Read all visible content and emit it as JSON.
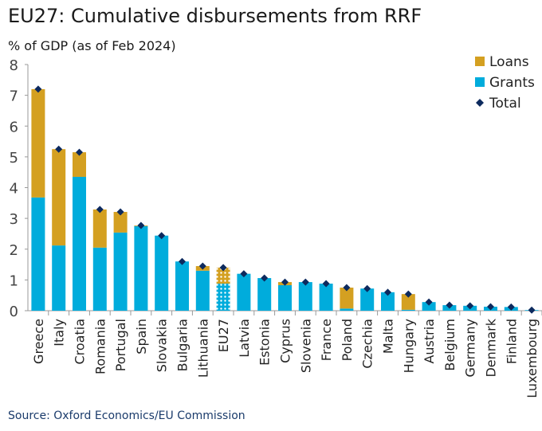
{
  "chart_data": {
    "type": "bar",
    "stacked": true,
    "title": "EU27: Cumulative disbursements from RRF",
    "ylabel": "% of GDP (as of Feb 2024)",
    "ylim": [
      0,
      8
    ],
    "yticks": [
      "0",
      "1",
      "2",
      "3",
      "4",
      "5",
      "6",
      "7",
      "8"
    ],
    "legend_position": "top-right",
    "categories": [
      "Greece",
      "Italy",
      "Croatia",
      "Romania",
      "Portugal",
      "Spain",
      "Slovakia",
      "Bulgaria",
      "Lithuania",
      "EU27",
      "Latvia",
      "Estonia",
      "Cyprus",
      "Slovenia",
      "France",
      "Poland",
      "Czechia",
      "Malta",
      "Hungary",
      "Austria",
      "Belgium",
      "Germany",
      "Denmark",
      "Finland",
      "Luxembourg"
    ],
    "series": [
      {
        "name": "Grants",
        "color": "#00acdc",
        "values": [
          3.68,
          2.12,
          4.35,
          2.05,
          2.54,
          2.75,
          2.44,
          1.6,
          1.3,
          0.88,
          1.2,
          1.06,
          0.83,
          0.93,
          0.88,
          0.07,
          0.72,
          0.6,
          0.03,
          0.28,
          0.18,
          0.16,
          0.13,
          0.12,
          0.02
        ]
      },
      {
        "name": "Loans",
        "color": "#d4a021",
        "values": [
          3.52,
          3.13,
          0.8,
          1.24,
          0.67,
          0.02,
          0,
          0,
          0.15,
          0.52,
          0,
          0,
          0.1,
          0,
          0,
          0.68,
          0,
          0,
          0.51,
          0,
          0,
          0,
          0,
          0,
          0
        ]
      },
      {
        "name": "Total",
        "color": "#0d2a5e",
        "values": [
          7.2,
          5.25,
          5.15,
          3.29,
          3.21,
          2.77,
          2.44,
          1.6,
          1.45,
          1.4,
          1.2,
          1.06,
          0.93,
          0.93,
          0.88,
          0.75,
          0.72,
          0.6,
          0.54,
          0.28,
          0.18,
          0.16,
          0.13,
          0.12,
          0.02
        ]
      }
    ],
    "highlight_category": "EU27",
    "source": "Source: Oxford Economics/EU Commission"
  }
}
